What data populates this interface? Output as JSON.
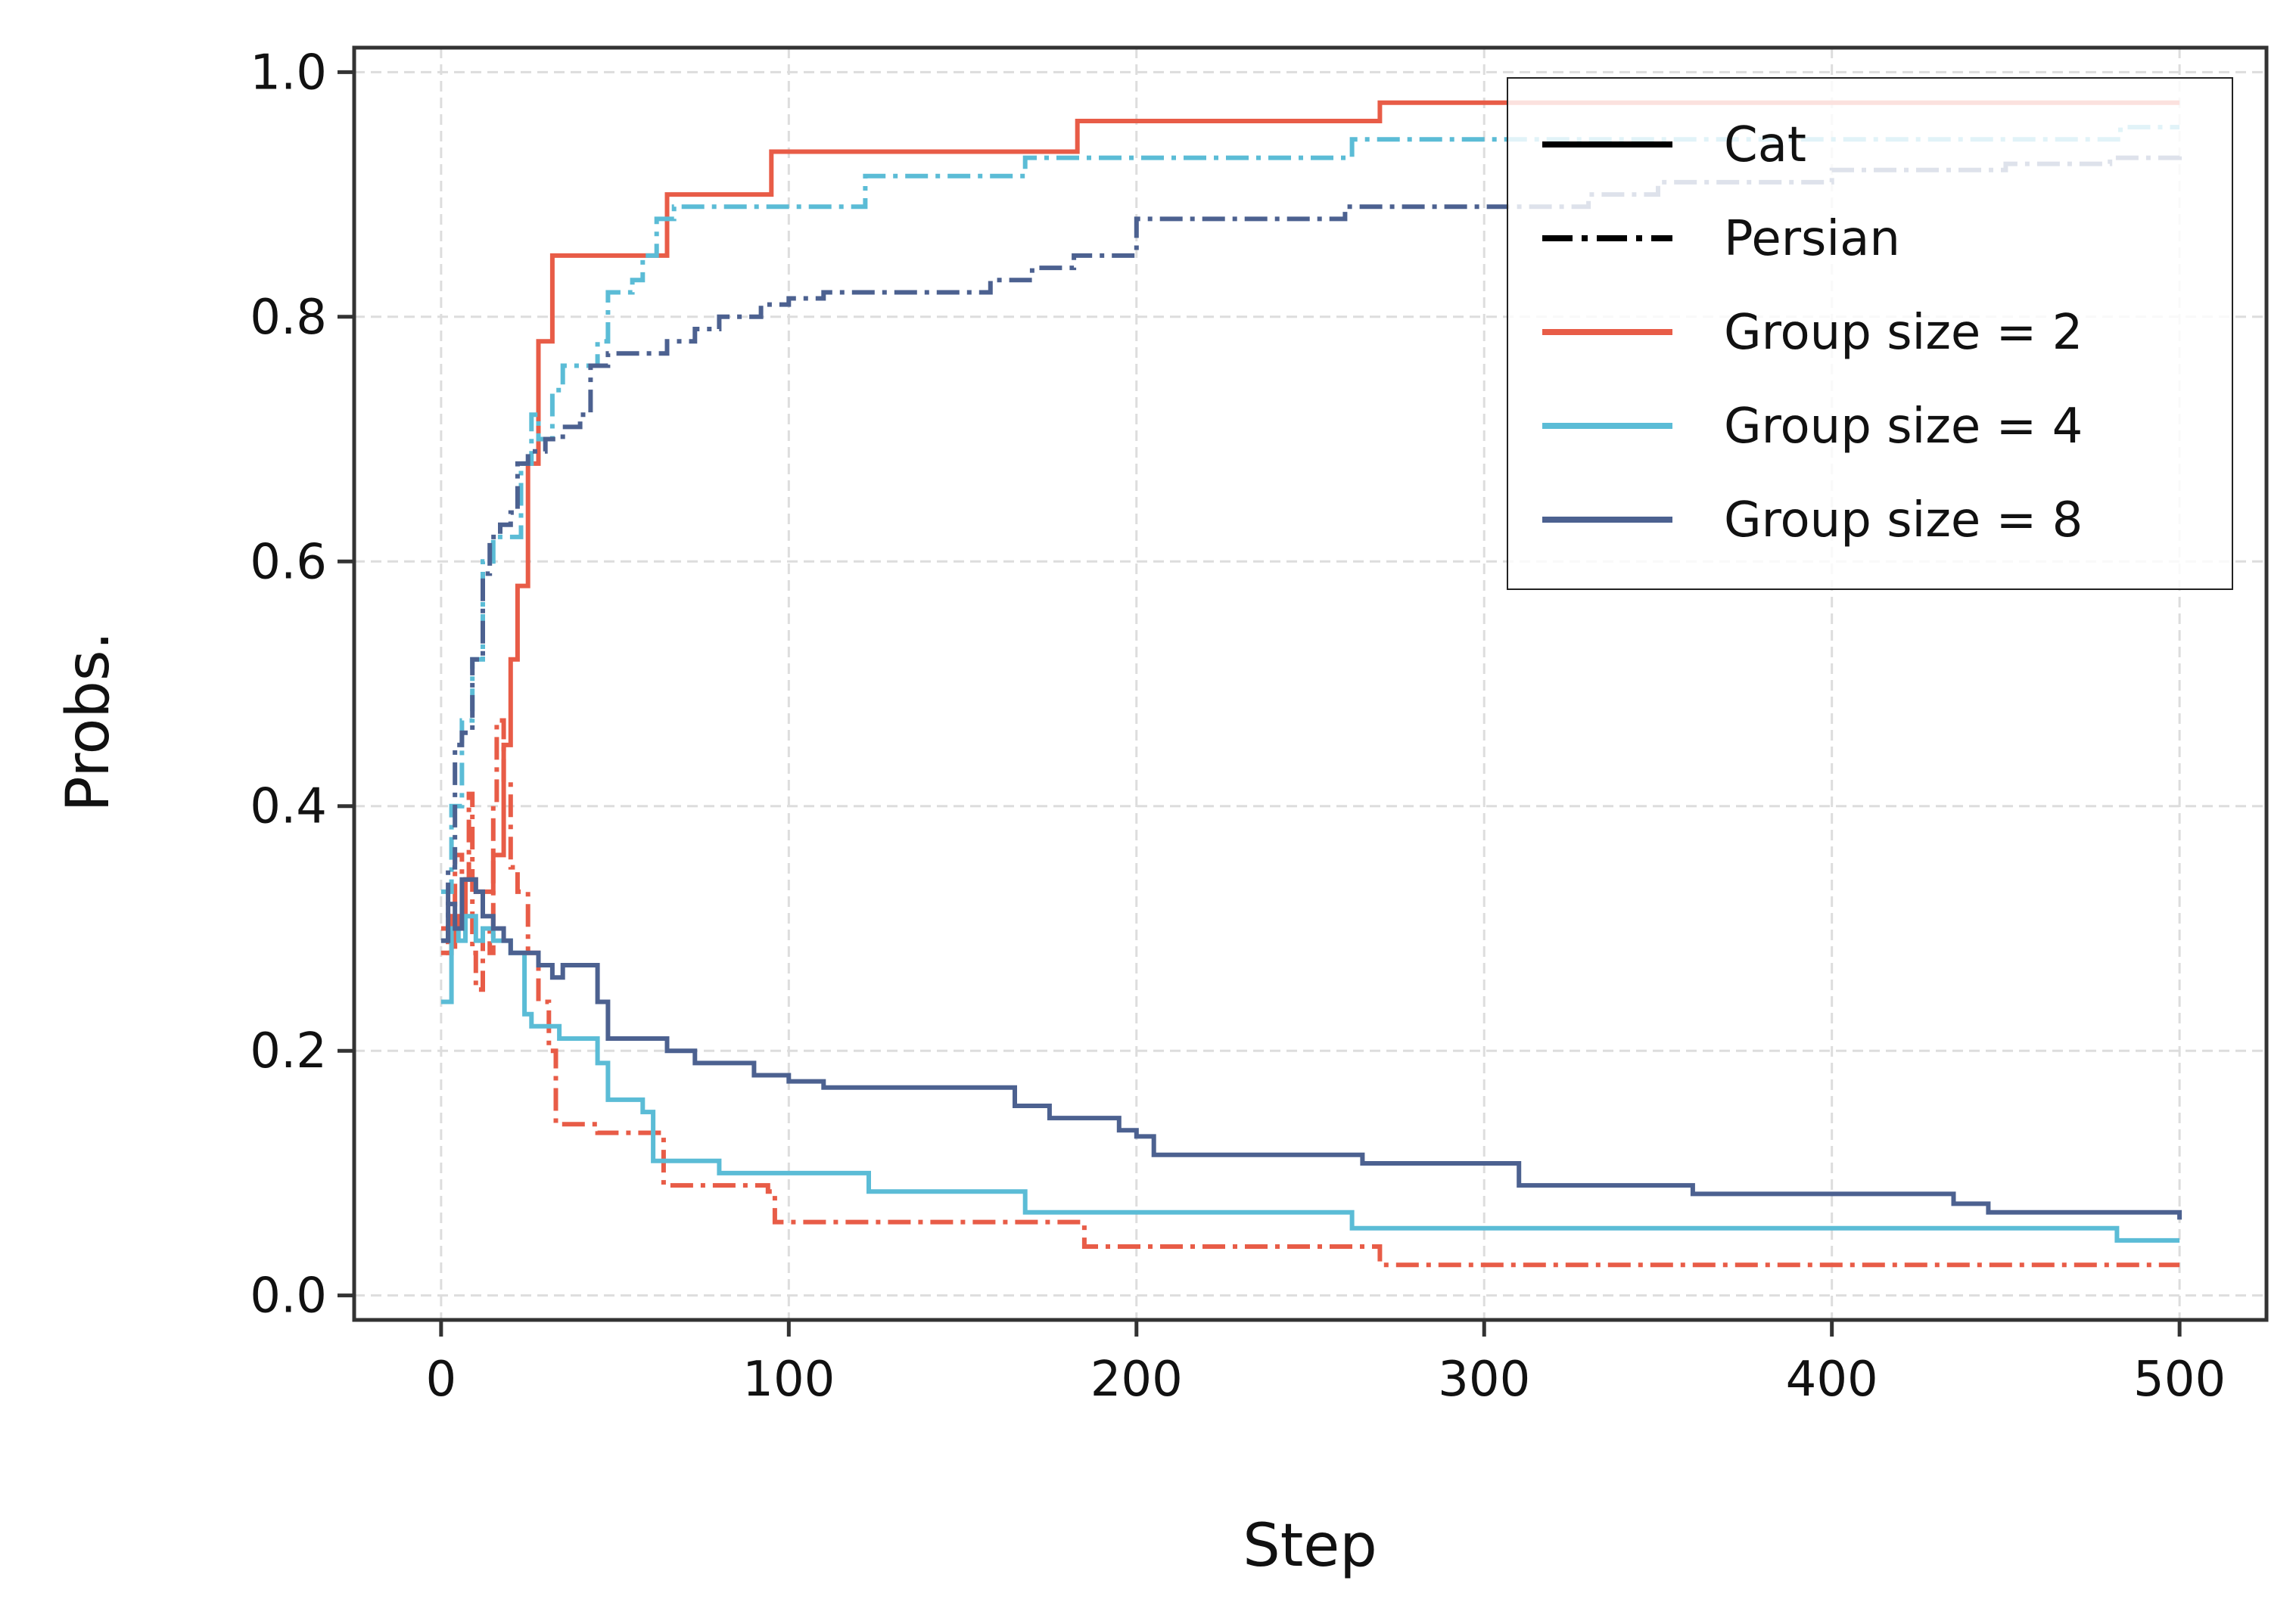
{
  "chart_data": {
    "type": "line",
    "xlabel": "Step",
    "ylabel": "Probs.",
    "xlim": [
      -25,
      525
    ],
    "ylim": [
      -0.02,
      1.02
    ],
    "xticks": [
      0,
      100,
      200,
      300,
      400,
      500
    ],
    "yticks": [
      0.0,
      0.2,
      0.4,
      0.6,
      0.8,
      1.0
    ],
    "xtick_labels": [
      "0",
      "100",
      "200",
      "300",
      "400",
      "500"
    ],
    "ytick_labels": [
      "0.0",
      "0.2",
      "0.4",
      "0.6",
      "0.8",
      "1.0"
    ],
    "grid": true,
    "legend_position": "top-right",
    "legend": [
      {
        "label": "Cat",
        "style": "solid",
        "color": "#000000"
      },
      {
        "label": "Persian",
        "style": "dashdot",
        "color": "#000000"
      },
      {
        "label": "Group size = 2",
        "style": "solid",
        "color": "#e85c47"
      },
      {
        "label": "Group size = 4",
        "style": "solid",
        "color": "#5bbcd6"
      },
      {
        "label": "Group size = 8",
        "style": "solid",
        "color": "#4c6190"
      }
    ],
    "series": [
      {
        "name": "Group size = 2 (Cat)",
        "group": "Group size = 2",
        "label": "Cat",
        "color": "#e85c47",
        "style": "solid",
        "points": [
          [
            0,
            0.28
          ],
          [
            3,
            0.31
          ],
          [
            5,
            0.3
          ],
          [
            7,
            0.34
          ],
          [
            10,
            0.33
          ],
          [
            14,
            0.33
          ],
          [
            15,
            0.36
          ],
          [
            18,
            0.45
          ],
          [
            20,
            0.52
          ],
          [
            22,
            0.58
          ],
          [
            25,
            0.68
          ],
          [
            28,
            0.78
          ],
          [
            30,
            0.78
          ],
          [
            32,
            0.85
          ],
          [
            45,
            0.85
          ],
          [
            50,
            0.85
          ],
          [
            55,
            0.85
          ],
          [
            60,
            0.85
          ],
          [
            65,
            0.9
          ],
          [
            75,
            0.9
          ],
          [
            85,
            0.9
          ],
          [
            95,
            0.935
          ],
          [
            130,
            0.935
          ],
          [
            150,
            0.935
          ],
          [
            180,
            0.935
          ],
          [
            183,
            0.96
          ],
          [
            220,
            0.96
          ],
          [
            250,
            0.96
          ],
          [
            270,
            0.975
          ],
          [
            300,
            0.975
          ],
          [
            350,
            0.975
          ],
          [
            400,
            0.975
          ],
          [
            450,
            0.975
          ],
          [
            500,
            0.975
          ]
        ]
      },
      {
        "name": "Group size = 2 (Persian)",
        "group": "Group size = 2",
        "label": "Persian",
        "color": "#e85c47",
        "style": "dashdot",
        "points": [
          [
            0,
            0.3
          ],
          [
            2,
            0.28
          ],
          [
            4,
            0.36
          ],
          [
            6,
            0.34
          ],
          [
            8,
            0.41
          ],
          [
            9,
            0.28
          ],
          [
            10,
            0.25
          ],
          [
            12,
            0.3
          ],
          [
            14,
            0.28
          ],
          [
            15,
            0.4
          ],
          [
            16,
            0.47
          ],
          [
            18,
            0.42
          ],
          [
            20,
            0.35
          ],
          [
            22,
            0.33
          ],
          [
            25,
            0.28
          ],
          [
            28,
            0.24
          ],
          [
            31,
            0.2
          ],
          [
            33,
            0.14
          ],
          [
            45,
            0.133
          ],
          [
            60,
            0.133
          ],
          [
            64,
            0.09
          ],
          [
            80,
            0.09
          ],
          [
            94,
            0.085
          ],
          [
            96,
            0.06
          ],
          [
            130,
            0.06
          ],
          [
            150,
            0.06
          ],
          [
            180,
            0.06
          ],
          [
            185,
            0.04
          ],
          [
            220,
            0.04
          ],
          [
            250,
            0.04
          ],
          [
            270,
            0.025
          ],
          [
            300,
            0.025
          ],
          [
            400,
            0.025
          ],
          [
            450,
            0.025
          ],
          [
            500,
            0.025
          ]
        ]
      },
      {
        "name": "Group size = 4 (Cat)",
        "group": "Group size = 4",
        "label": "Cat",
        "color": "#5bbcd6",
        "style": "solid",
        "points": [
          [
            0,
            0.24
          ],
          [
            3,
            0.3
          ],
          [
            5,
            0.29
          ],
          [
            7,
            0.31
          ],
          [
            10,
            0.29
          ],
          [
            12,
            0.3
          ],
          [
            15,
            0.29
          ],
          [
            20,
            0.28
          ],
          [
            24,
            0.23
          ],
          [
            26,
            0.22
          ],
          [
            30,
            0.22
          ],
          [
            34,
            0.21
          ],
          [
            40,
            0.21
          ],
          [
            45,
            0.19
          ],
          [
            48,
            0.16
          ],
          [
            55,
            0.16
          ],
          [
            58,
            0.15
          ],
          [
            61,
            0.11
          ],
          [
            70,
            0.11
          ],
          [
            80,
            0.1
          ],
          [
            100,
            0.1
          ],
          [
            110,
            0.1
          ],
          [
            123,
            0.085
          ],
          [
            140,
            0.085
          ],
          [
            160,
            0.085
          ],
          [
            168,
            0.068
          ],
          [
            200,
            0.068
          ],
          [
            230,
            0.068
          ],
          [
            262,
            0.055
          ],
          [
            300,
            0.055
          ],
          [
            350,
            0.055
          ],
          [
            400,
            0.055
          ],
          [
            450,
            0.055
          ],
          [
            480,
            0.055
          ],
          [
            482,
            0.045
          ],
          [
            500,
            0.045
          ]
        ]
      },
      {
        "name": "Group size = 4 (Persian)",
        "group": "Group size = 4",
        "label": "Persian",
        "color": "#5bbcd6",
        "style": "dashdot",
        "points": [
          [
            0,
            0.33
          ],
          [
            3,
            0.4
          ],
          [
            6,
            0.47
          ],
          [
            9,
            0.52
          ],
          [
            12,
            0.6
          ],
          [
            15,
            0.62
          ],
          [
            18,
            0.62
          ],
          [
            21,
            0.62
          ],
          [
            23,
            0.68
          ],
          [
            26,
            0.72
          ],
          [
            28,
            0.7
          ],
          [
            32,
            0.74
          ],
          [
            35,
            0.76
          ],
          [
            40,
            0.76
          ],
          [
            45,
            0.78
          ],
          [
            48,
            0.82
          ],
          [
            55,
            0.83
          ],
          [
            58,
            0.85
          ],
          [
            62,
            0.88
          ],
          [
            67,
            0.89
          ],
          [
            80,
            0.89
          ],
          [
            100,
            0.89
          ],
          [
            110,
            0.89
          ],
          [
            122,
            0.915
          ],
          [
            140,
            0.915
          ],
          [
            168,
            0.93
          ],
          [
            200,
            0.93
          ],
          [
            230,
            0.93
          ],
          [
            262,
            0.945
          ],
          [
            300,
            0.945
          ],
          [
            350,
            0.945
          ],
          [
            400,
            0.945
          ],
          [
            450,
            0.945
          ],
          [
            480,
            0.945
          ],
          [
            483,
            0.955
          ],
          [
            500,
            0.955
          ]
        ]
      },
      {
        "name": "Group size = 8 (Cat)",
        "group": "Group size = 8",
        "label": "Cat",
        "color": "#4c6190",
        "style": "solid",
        "points": [
          [
            0,
            0.29
          ],
          [
            2,
            0.32
          ],
          [
            4,
            0.3
          ],
          [
            6,
            0.34
          ],
          [
            8,
            0.34
          ],
          [
            10,
            0.33
          ],
          [
            12,
            0.31
          ],
          [
            15,
            0.3
          ],
          [
            18,
            0.29
          ],
          [
            20,
            0.28
          ],
          [
            25,
            0.28
          ],
          [
            28,
            0.27
          ],
          [
            32,
            0.26
          ],
          [
            35,
            0.27
          ],
          [
            42,
            0.27
          ],
          [
            45,
            0.24
          ],
          [
            48,
            0.21
          ],
          [
            55,
            0.21
          ],
          [
            60,
            0.21
          ],
          [
            65,
            0.2
          ],
          [
            73,
            0.19
          ],
          [
            80,
            0.19
          ],
          [
            90,
            0.18
          ],
          [
            100,
            0.175
          ],
          [
            110,
            0.17
          ],
          [
            120,
            0.17
          ],
          [
            130,
            0.17
          ],
          [
            160,
            0.17
          ],
          [
            165,
            0.155
          ],
          [
            175,
            0.145
          ],
          [
            190,
            0.145
          ],
          [
            195,
            0.135
          ],
          [
            200,
            0.13
          ],
          [
            205,
            0.115
          ],
          [
            230,
            0.115
          ],
          [
            260,
            0.115
          ],
          [
            265,
            0.108
          ],
          [
            300,
            0.108
          ],
          [
            310,
            0.09
          ],
          [
            350,
            0.09
          ],
          [
            360,
            0.083
          ],
          [
            400,
            0.083
          ],
          [
            430,
            0.083
          ],
          [
            435,
            0.075
          ],
          [
            440,
            0.075
          ],
          [
            445,
            0.068
          ],
          [
            490,
            0.068
          ],
          [
            500,
            0.062
          ]
        ]
      },
      {
        "name": "Group size = 8 (Persian)",
        "group": "Group size = 8",
        "label": "Persian",
        "color": "#4c6190",
        "style": "dashdot",
        "points": [
          [
            0,
            0.29
          ],
          [
            2,
            0.35
          ],
          [
            4,
            0.45
          ],
          [
            6,
            0.46
          ],
          [
            9,
            0.52
          ],
          [
            12,
            0.59
          ],
          [
            14,
            0.62
          ],
          [
            17,
            0.63
          ],
          [
            20,
            0.64
          ],
          [
            22,
            0.68
          ],
          [
            25,
            0.69
          ],
          [
            30,
            0.7
          ],
          [
            35,
            0.71
          ],
          [
            40,
            0.72
          ],
          [
            43,
            0.76
          ],
          [
            48,
            0.77
          ],
          [
            60,
            0.77
          ],
          [
            65,
            0.78
          ],
          [
            73,
            0.79
          ],
          [
            80,
            0.8
          ],
          [
            92,
            0.81
          ],
          [
            100,
            0.815
          ],
          [
            110,
            0.82
          ],
          [
            130,
            0.82
          ],
          [
            150,
            0.82
          ],
          [
            158,
            0.83
          ],
          [
            170,
            0.84
          ],
          [
            182,
            0.85
          ],
          [
            195,
            0.85
          ],
          [
            200,
            0.88
          ],
          [
            220,
            0.88
          ],
          [
            250,
            0.88
          ],
          [
            260,
            0.89
          ],
          [
            290,
            0.89
          ],
          [
            300,
            0.89
          ],
          [
            320,
            0.89
          ],
          [
            330,
            0.9
          ],
          [
            350,
            0.91
          ],
          [
            380,
            0.91
          ],
          [
            400,
            0.92
          ],
          [
            430,
            0.92
          ],
          [
            450,
            0.925
          ],
          [
            480,
            0.93
          ],
          [
            500,
            0.935
          ]
        ]
      }
    ]
  }
}
